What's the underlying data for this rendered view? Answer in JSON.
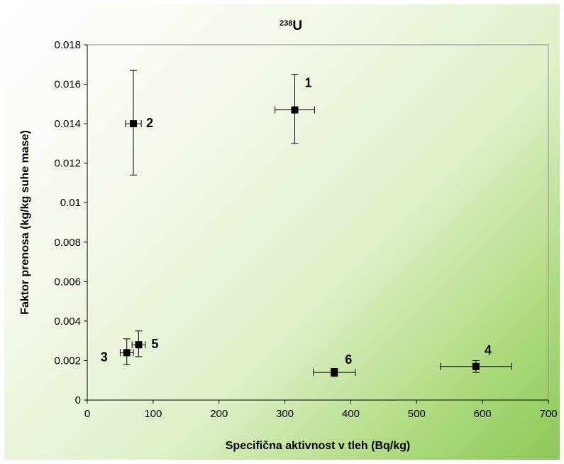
{
  "chart_data": {
    "type": "scatter",
    "title_sup": "238",
    "title_main": "U",
    "xlabel": "Specifična aktivnost v tleh (Bq/kg)",
    "ylabel": "Faktor prenosa (kg/kg suhe mase)",
    "xlim": [
      0,
      700
    ],
    "ylim": [
      0,
      0.018
    ],
    "x_ticks": [
      "0",
      "100",
      "200",
      "300",
      "400",
      "500",
      "600",
      "700"
    ],
    "y_ticks": [
      "0",
      "0.002",
      "0.004",
      "0.006",
      "0.008",
      "0.01",
      "0.012",
      "0.014",
      "0.016",
      "0.018"
    ],
    "grid": false,
    "legend": "none",
    "marker_color": "#000000",
    "points": [
      {
        "label": "1",
        "x": 315,
        "y": 0.0147,
        "xerr": 30,
        "yerr_low": 0.0017,
        "yerr_high": 0.0018
      },
      {
        "label": "2",
        "x": 70,
        "y": 0.014,
        "xerr": 12,
        "yerr_low": 0.0026,
        "yerr_high": 0.0027
      },
      {
        "label": "3",
        "x": 60,
        "y": 0.0024,
        "xerr": 10,
        "yerr_low": 0.0006,
        "yerr_high": 0.0007
      },
      {
        "label": "4",
        "x": 590,
        "y": 0.0017,
        "xerr": 54,
        "yerr_low": 0.0003,
        "yerr_high": 0.0003
      },
      {
        "label": "5",
        "x": 78,
        "y": 0.0028,
        "xerr": 10,
        "yerr_low": 0.0006,
        "yerr_high": 0.0007
      },
      {
        "label": "6",
        "x": 375,
        "y": 0.0014,
        "xerr": 32,
        "yerr_low": 0.0002,
        "yerr_high": 0.0002
      }
    ]
  }
}
